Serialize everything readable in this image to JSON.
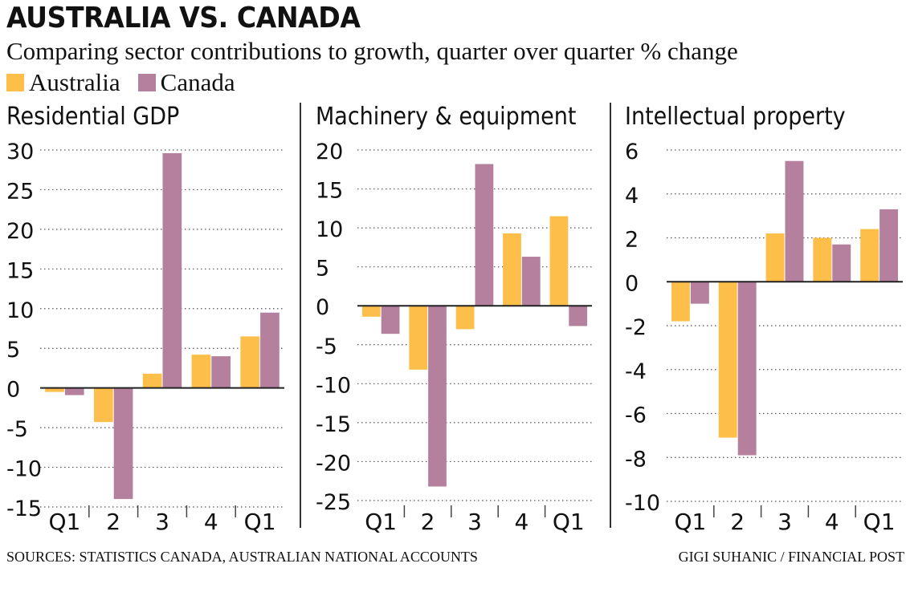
{
  "title": "AUSTRALIA VS. CANADA",
  "subtitle": "Comparing sector contributions to growth, quarter over quarter % change",
  "legend": {
    "australia": "Australia",
    "canada": "Canada"
  },
  "colors": {
    "australia": "#fdbf4a",
    "canada": "#b5809e"
  },
  "footer": {
    "source": "SOURCES: STATISTICS CANADA, AUSTRALIAN NATIONAL ACCOUNTS",
    "credit": "GIGI SUHANIC / FINANCIAL POST"
  },
  "chart_data": [
    {
      "type": "bar",
      "title": "Residential GDP",
      "categories": [
        "Q1",
        "2",
        "3",
        "4",
        "Q1"
      ],
      "ylim": [
        -15,
        30
      ],
      "yticks": [
        30,
        25,
        20,
        15,
        10,
        5,
        0,
        -5,
        -10,
        -15
      ],
      "series": [
        {
          "name": "Australia",
          "values": [
            -0.5,
            -4.3,
            1.8,
            4.2,
            6.5
          ]
        },
        {
          "name": "Canada",
          "values": [
            -0.9,
            -14.0,
            29.6,
            4.0,
            9.5
          ]
        }
      ]
    },
    {
      "type": "bar",
      "title": "Machinery & equipment",
      "categories": [
        "Q1",
        "2",
        "3",
        "4",
        "Q1"
      ],
      "ylim": [
        -25,
        20
      ],
      "yticks": [
        20,
        15,
        10,
        5,
        0,
        -5,
        -10,
        -15,
        -20,
        -25
      ],
      "series": [
        {
          "name": "Australia",
          "values": [
            -1.4,
            -8.2,
            -3.0,
            9.3,
            11.5
          ]
        },
        {
          "name": "Canada",
          "values": [
            -3.6,
            -23.2,
            18.2,
            6.3,
            -2.6
          ]
        }
      ]
    },
    {
      "type": "bar",
      "title": "Intellectual property",
      "categories": [
        "Q1",
        "2",
        "3",
        "4",
        "Q1"
      ],
      "ylim": [
        -10,
        6
      ],
      "yticks": [
        6,
        4,
        2,
        0,
        -2,
        -4,
        -6,
        -8,
        -10
      ],
      "series": [
        {
          "name": "Australia",
          "values": [
            -1.8,
            -7.1,
            2.2,
            2.0,
            2.4
          ]
        },
        {
          "name": "Canada",
          "values": [
            -1.0,
            -7.9,
            5.5,
            1.7,
            3.3
          ]
        }
      ]
    }
  ]
}
